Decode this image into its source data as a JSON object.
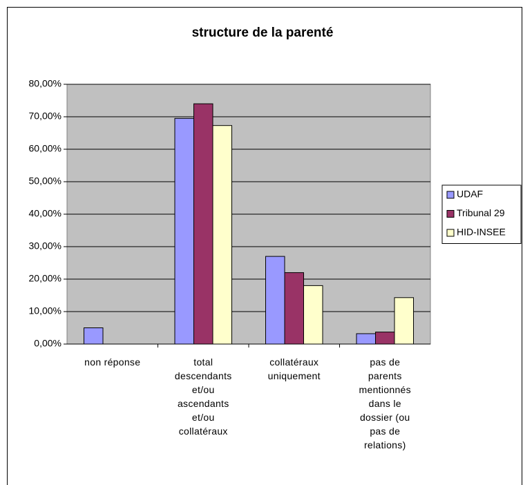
{
  "chart_data": {
    "type": "bar",
    "title": "structure de la parenté",
    "categories": [
      "non réponse",
      "total descendants et/ou ascendants et/ou collatéraux",
      "collatéraux uniquement",
      "pas de parents mentionnés dans le dossier (ou pas de relations)"
    ],
    "series": [
      {
        "name": "UDAF",
        "color": "#9999ff",
        "values": [
          5.0,
          69.5,
          27.0,
          3.2
        ]
      },
      {
        "name": "Tribunal 29",
        "color": "#993366",
        "values": [
          0,
          74.0,
          22.0,
          3.7
        ]
      },
      {
        "name": "HID-INSEE",
        "color": "#ffffcc",
        "values": [
          0,
          67.3,
          18.0,
          14.3
        ]
      }
    ],
    "ylim": [
      0,
      80
    ],
    "yticks": [
      {
        "value": 0,
        "label": "0,00%"
      },
      {
        "value": 10,
        "label": "10,00%"
      },
      {
        "value": 20,
        "label": "20,00%"
      },
      {
        "value": 30,
        "label": "30,00%"
      },
      {
        "value": 40,
        "label": "40,00%"
      },
      {
        "value": 50,
        "label": "50,00%"
      },
      {
        "value": 60,
        "label": "60,00%"
      },
      {
        "value": 70,
        "label": "70,00%"
      },
      {
        "value": 80,
        "label": "80,00%"
      }
    ],
    "grid": true,
    "legend": "right"
  }
}
